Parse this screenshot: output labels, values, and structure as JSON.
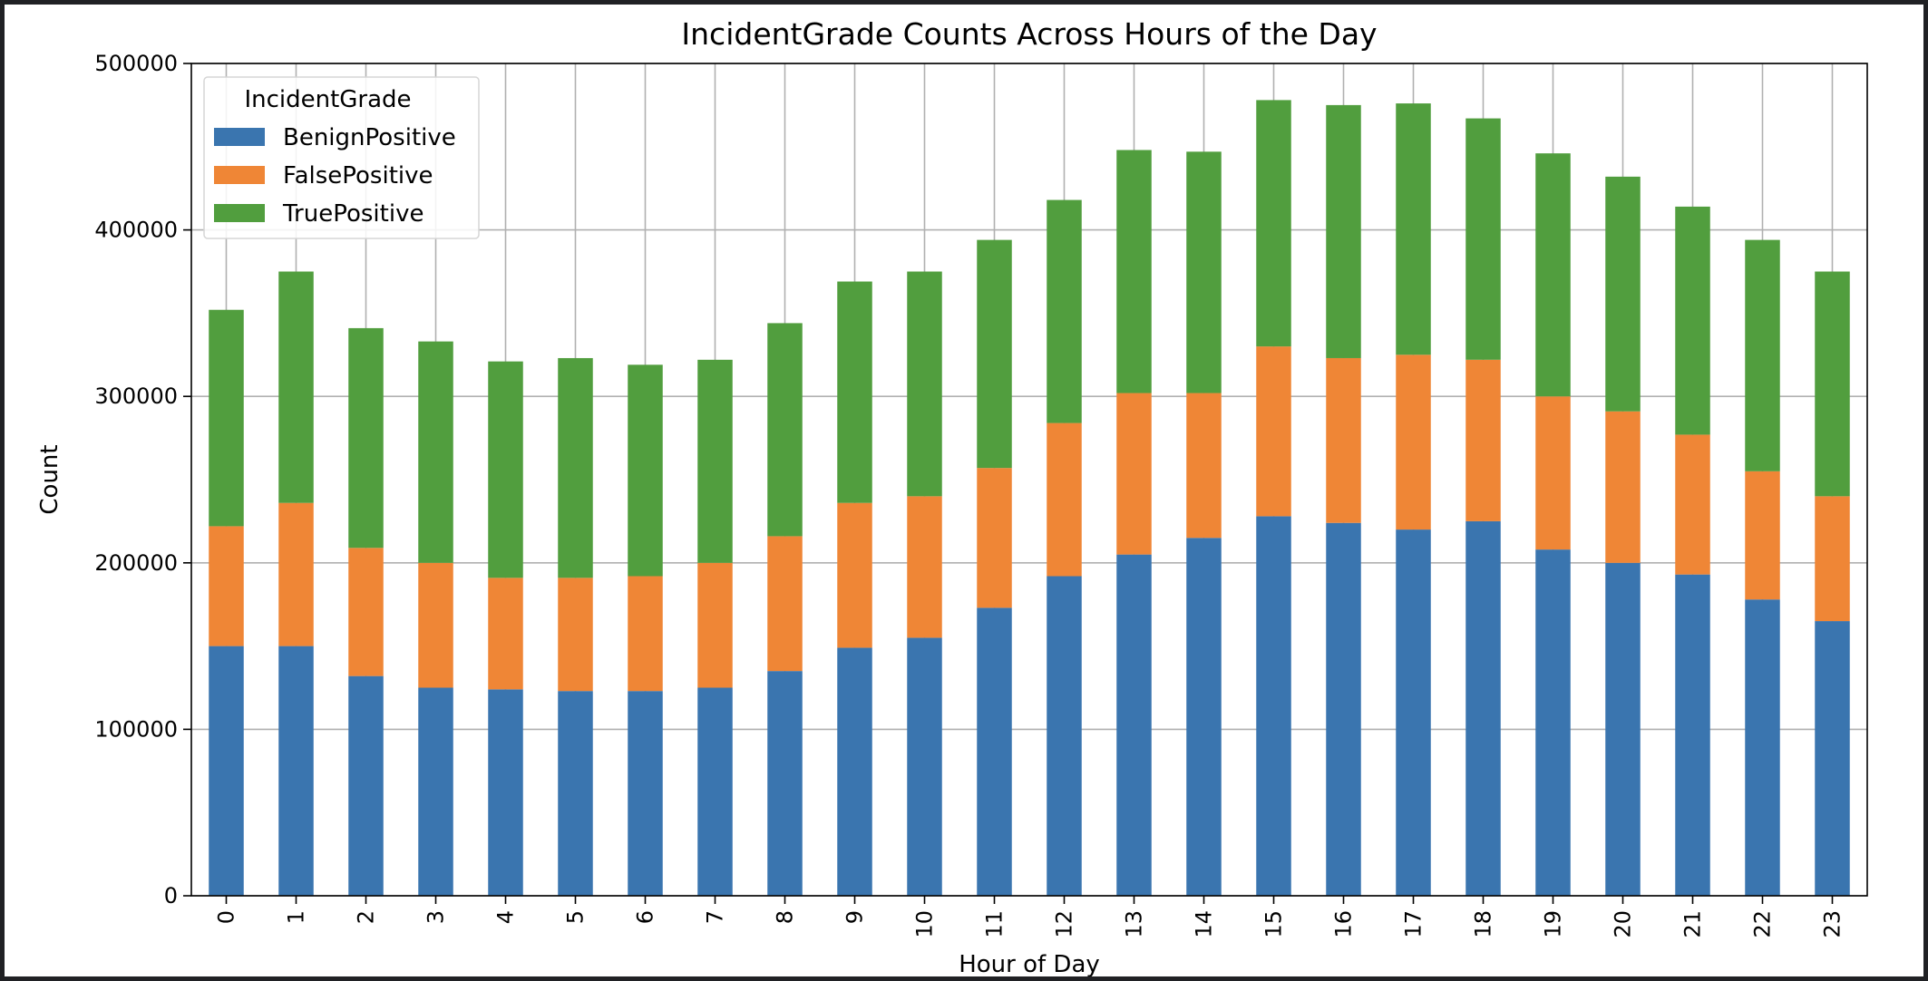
{
  "chart_data": {
    "type": "bar",
    "stacked": true,
    "title": "IncidentGrade Counts Across Hours of the Day",
    "xlabel": "Hour of Day",
    "ylabel": "Count",
    "ylim": [
      0,
      500000
    ],
    "yticks": [
      0,
      100000,
      200000,
      300000,
      400000,
      500000
    ],
    "grid": true,
    "legend": {
      "title": "IncidentGrade",
      "placement": "top-left"
    },
    "categories": [
      "0",
      "1",
      "2",
      "3",
      "4",
      "5",
      "6",
      "7",
      "8",
      "9",
      "10",
      "11",
      "12",
      "13",
      "14",
      "15",
      "16",
      "17",
      "18",
      "19",
      "20",
      "21",
      "22",
      "23"
    ],
    "series": [
      {
        "name": "BenignPositive",
        "color": "#3a75af",
        "values": [
          150000,
          150000,
          132000,
          125000,
          124000,
          123000,
          123000,
          125000,
          135000,
          149000,
          155000,
          173000,
          192000,
          205000,
          215000,
          228000,
          224000,
          220000,
          225000,
          208000,
          200000,
          193000,
          178000,
          165000
        ]
      },
      {
        "name": "FalsePositive",
        "color": "#ef8636",
        "values": [
          72000,
          86000,
          77000,
          75000,
          67000,
          68000,
          69000,
          75000,
          81000,
          87000,
          85000,
          84000,
          92000,
          97000,
          87000,
          102000,
          99000,
          105000,
          97000,
          92000,
          91000,
          84000,
          77000,
          75000
        ]
      },
      {
        "name": "TruePositive",
        "color": "#519e3e",
        "values": [
          130000,
          139000,
          132000,
          133000,
          130000,
          132000,
          127000,
          122000,
          128000,
          133000,
          135000,
          137000,
          134000,
          146000,
          145000,
          148000,
          152000,
          151000,
          145000,
          146000,
          141000,
          137000,
          139000,
          135000
        ]
      }
    ]
  }
}
